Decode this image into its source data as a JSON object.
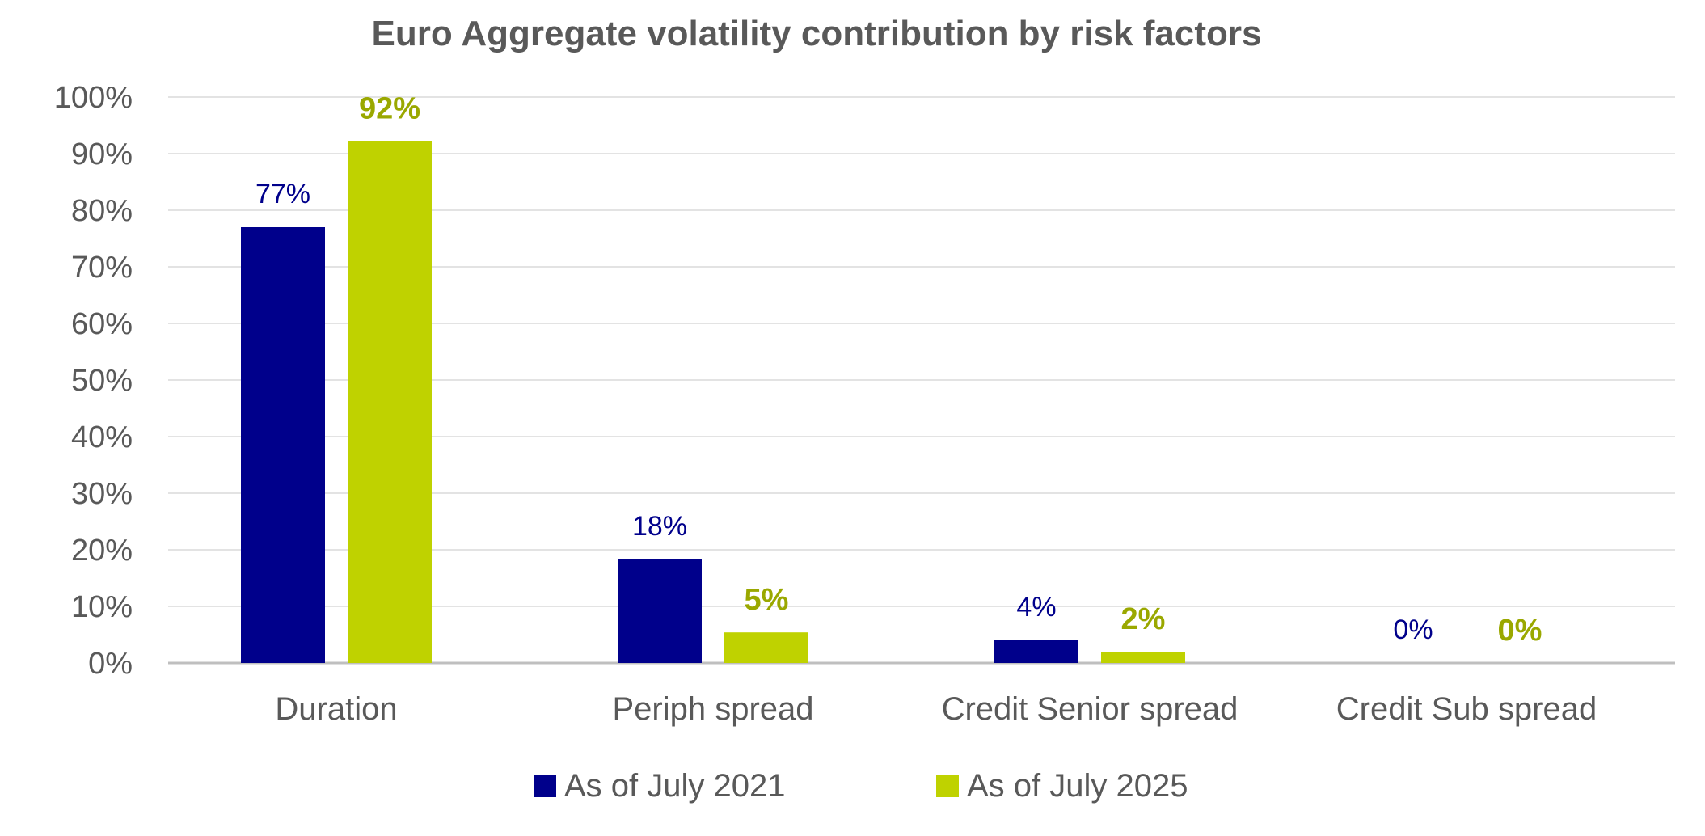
{
  "chart_data": {
    "type": "bar",
    "title": "Euro Aggregate volatility contribution by risk factors",
    "xlabel": "",
    "ylabel": "",
    "ylim": [
      0,
      100
    ],
    "yticks": [
      0,
      10,
      20,
      30,
      40,
      50,
      60,
      70,
      80,
      90,
      100
    ],
    "ytick_labels": [
      "0%",
      "10%",
      "20%",
      "30%",
      "40%",
      "50%",
      "60%",
      "70%",
      "80%",
      "90%",
      "100%"
    ],
    "categories": [
      "Duration",
      "Periph spread",
      "Credit Senior spread",
      "Credit Sub spread"
    ],
    "series": [
      {
        "name": "As of July 2021",
        "color": "#00008B",
        "values": [
          77,
          18.3,
          4,
          0
        ],
        "labels": [
          "77%",
          "18%",
          "4%",
          "0%"
        ]
      },
      {
        "name": "As of July 2025",
        "color": "#BFD200",
        "labelColor": "#9AA800",
        "values": [
          92.2,
          5.4,
          2,
          0
        ],
        "labels": [
          "92%",
          "5%",
          "2%",
          "0%"
        ]
      }
    ],
    "grid": true,
    "legend": "bottom"
  }
}
